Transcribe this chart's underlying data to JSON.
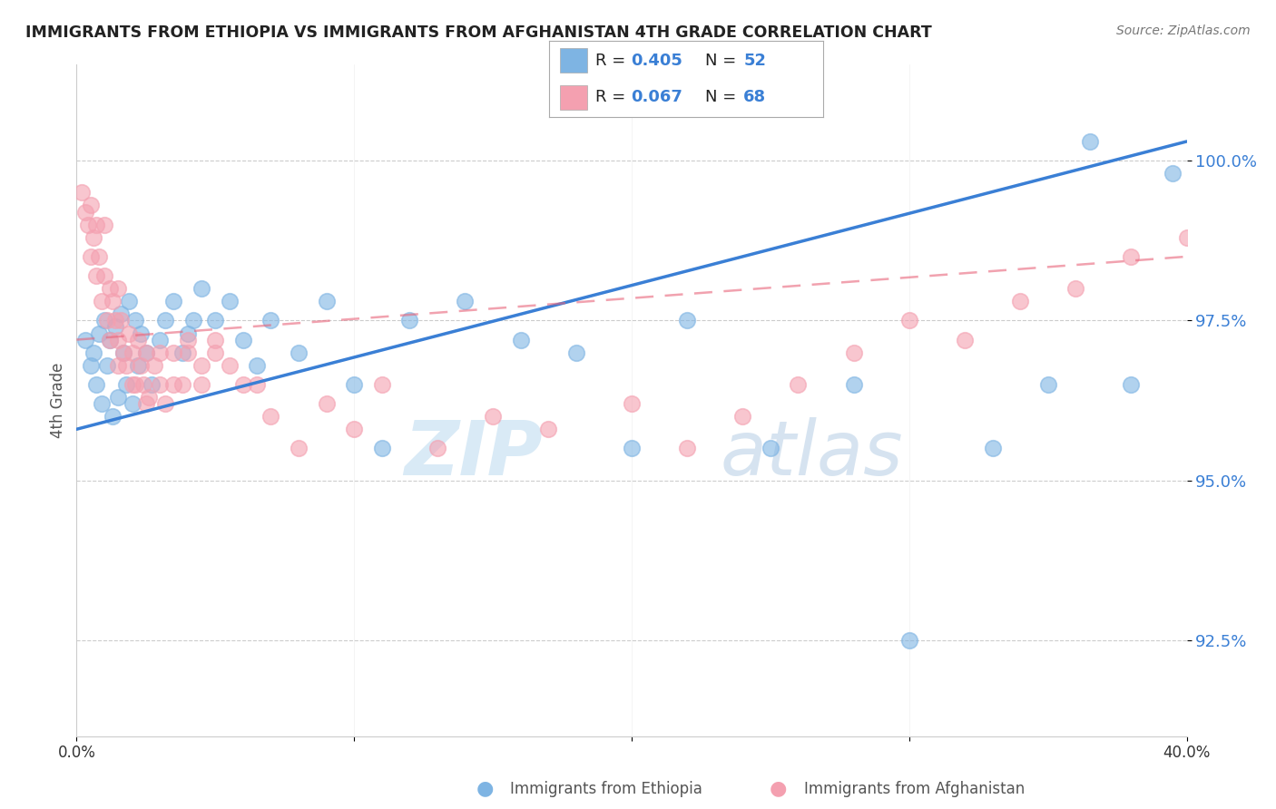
{
  "title": "IMMIGRANTS FROM ETHIOPIA VS IMMIGRANTS FROM AFGHANISTAN 4TH GRADE CORRELATION CHART",
  "source": "Source: ZipAtlas.com",
  "ylabel": "4th Grade",
  "yticks": [
    92.5,
    95.0,
    97.5,
    100.0
  ],
  "ytick_labels": [
    "92.5%",
    "95.0%",
    "97.5%",
    "100.0%"
  ],
  "xlim": [
    0.0,
    40.0
  ],
  "ylim": [
    91.0,
    101.5
  ],
  "legend_r1": "0.405",
  "legend_n1": "52",
  "legend_r2": "0.067",
  "legend_n2": "68",
  "color_ethiopia": "#7EB4E3",
  "color_afghanistan": "#F4A0B0",
  "color_blue": "#3A7FD5",
  "color_pink": "#E8647A",
  "ethiopia_x": [
    0.3,
    0.5,
    0.6,
    0.7,
    0.8,
    0.9,
    1.0,
    1.1,
    1.2,
    1.3,
    1.4,
    1.5,
    1.6,
    1.7,
    1.8,
    1.9,
    2.0,
    2.1,
    2.2,
    2.3,
    2.5,
    2.7,
    3.0,
    3.2,
    3.5,
    4.0,
    4.5,
    5.0,
    5.5,
    6.0,
    7.0,
    8.0,
    9.0,
    10.0,
    12.0,
    14.0,
    16.0,
    18.0,
    20.0,
    25.0,
    30.0,
    35.0,
    38.0,
    39.5,
    3.8,
    4.2,
    6.5,
    11.0,
    22.0,
    28.0,
    33.0,
    36.5
  ],
  "ethiopia_y": [
    97.2,
    96.8,
    97.0,
    96.5,
    97.3,
    96.2,
    97.5,
    96.8,
    97.2,
    96.0,
    97.4,
    96.3,
    97.6,
    97.0,
    96.5,
    97.8,
    96.2,
    97.5,
    96.8,
    97.3,
    97.0,
    96.5,
    97.2,
    97.5,
    97.8,
    97.3,
    98.0,
    97.5,
    97.8,
    97.2,
    97.5,
    97.0,
    97.8,
    96.5,
    97.5,
    97.8,
    97.2,
    97.0,
    95.5,
    95.5,
    92.5,
    96.5,
    96.5,
    99.8,
    97.0,
    97.5,
    96.8,
    95.5,
    97.5,
    96.5,
    95.5,
    100.3
  ],
  "afghanistan_x": [
    0.2,
    0.3,
    0.4,
    0.5,
    0.5,
    0.6,
    0.7,
    0.7,
    0.8,
    0.9,
    1.0,
    1.0,
    1.1,
    1.2,
    1.2,
    1.3,
    1.4,
    1.5,
    1.5,
    1.6,
    1.7,
    1.8,
    1.9,
    2.0,
    2.1,
    2.2,
    2.3,
    2.4,
    2.5,
    2.6,
    2.8,
    3.0,
    3.2,
    3.5,
    3.8,
    4.0,
    4.5,
    5.0,
    5.5,
    6.0,
    7.0,
    8.0,
    9.0,
    10.0,
    11.0,
    13.0,
    15.0,
    17.0,
    20.0,
    22.0,
    24.0,
    26.0,
    28.0,
    30.0,
    32.0,
    34.0,
    36.0,
    38.0,
    40.0,
    1.5,
    2.0,
    2.5,
    3.0,
    3.5,
    4.0,
    4.5,
    5.0,
    6.5
  ],
  "afghanistan_y": [
    99.5,
    99.2,
    99.0,
    98.5,
    99.3,
    98.8,
    99.0,
    98.2,
    98.5,
    97.8,
    98.2,
    99.0,
    97.5,
    98.0,
    97.2,
    97.8,
    97.5,
    97.2,
    98.0,
    97.5,
    97.0,
    96.8,
    97.3,
    97.0,
    96.5,
    97.2,
    96.8,
    96.5,
    97.0,
    96.3,
    96.8,
    96.5,
    96.2,
    97.0,
    96.5,
    97.0,
    96.5,
    97.2,
    96.8,
    96.5,
    96.0,
    95.5,
    96.2,
    95.8,
    96.5,
    95.5,
    96.0,
    95.8,
    96.2,
    95.5,
    96.0,
    96.5,
    97.0,
    97.5,
    97.2,
    97.8,
    98.0,
    98.5,
    98.8,
    96.8,
    96.5,
    96.2,
    97.0,
    96.5,
    97.2,
    96.8,
    97.0,
    96.5
  ],
  "eth_line_x": [
    0.0,
    40.0
  ],
  "eth_line_y": [
    95.8,
    100.3
  ],
  "afg_line_x": [
    0.0,
    40.0
  ],
  "afg_line_y": [
    97.2,
    98.5
  ]
}
